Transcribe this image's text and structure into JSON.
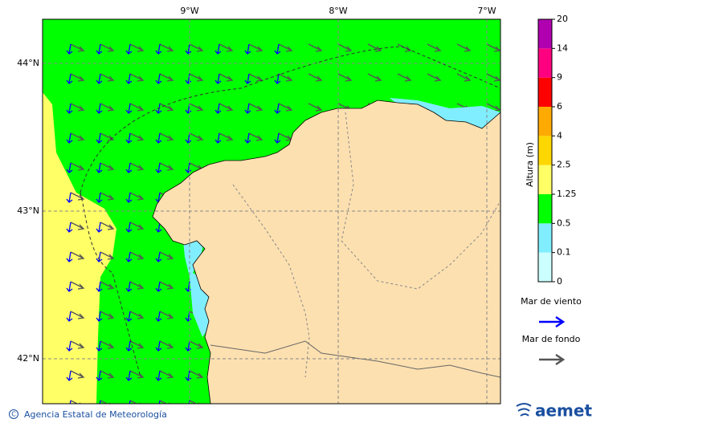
{
  "map": {
    "lon_labels": [
      "9°W",
      "8°W",
      "7°W"
    ],
    "lat_labels": [
      "44°N",
      "43°N",
      "42°N"
    ]
  },
  "colorbar": {
    "label": "Altura (m)",
    "ticks": [
      0,
      0.1,
      0.5,
      1.25,
      2.5,
      4,
      6,
      9,
      14,
      20
    ],
    "colors": [
      "#ccffff",
      "#80eeff",
      "#00ff00",
      "#ffff66",
      "#ffd700",
      "#ffaa00",
      "#ff0000",
      "#ff0080",
      "#b000b0"
    ]
  },
  "legend": [
    {
      "label": "Mar de viento",
      "color": "#0000ff"
    },
    {
      "label": "Mar de fondo",
      "color": "#555555"
    }
  ],
  "footer": {
    "credit": "Agencia Estatal de Meteorología",
    "logo": "aemet"
  }
}
